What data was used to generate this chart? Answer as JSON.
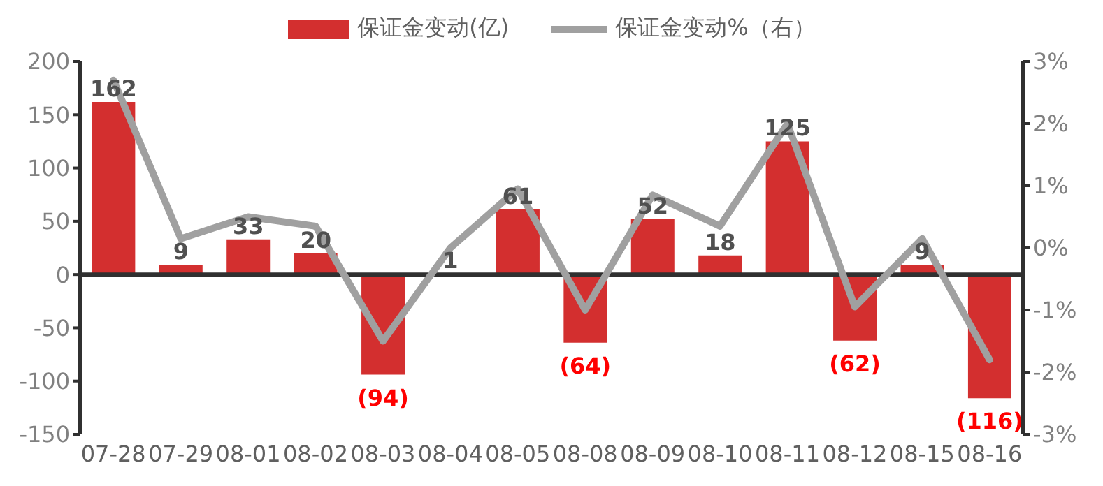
{
  "chart_data": {
    "type": "bar",
    "categories": [
      "07-28",
      "07-29",
      "08-01",
      "08-02",
      "08-03",
      "08-04",
      "08-05",
      "08-08",
      "08-09",
      "08-10",
      "08-11",
      "08-12",
      "08-15",
      "08-16"
    ],
    "series": [
      {
        "name": "保证金变动(亿)",
        "color": "#d32f2f",
        "values": [
          162,
          9,
          33,
          20,
          -94,
          1,
          61,
          -64,
          52,
          18,
          125,
          -62,
          9,
          -116
        ],
        "value_labels": [
          "162",
          "9",
          "33",
          "20",
          "(94)",
          "1",
          "61",
          "(64)",
          "52",
          "18",
          "125",
          "(62)",
          "9",
          "(116)"
        ]
      },
      {
        "name": "保证金变动%（右）",
        "type": "line",
        "axis": "y2",
        "color": "#a0a0a0",
        "values": [
          2.7,
          0.15,
          0.5,
          0.35,
          -1.5,
          0.0,
          0.95,
          -1.0,
          0.85,
          0.35,
          2.0,
          -0.95,
          0.15,
          -1.8
        ]
      }
    ],
    "ylim": [
      -150,
      200
    ],
    "yticks": [
      -150,
      -100,
      -50,
      0,
      50,
      100,
      150,
      200
    ],
    "y2lim": [
      -3,
      3
    ],
    "y2ticks": [
      {
        "value": -3,
        "label": "-3%"
      },
      {
        "value": -2,
        "label": "-2%"
      },
      {
        "value": -1,
        "label": "-1%"
      },
      {
        "value": 0,
        "label": "0%"
      },
      {
        "value": 1,
        "label": "1%"
      },
      {
        "value": 2,
        "label": "2%"
      },
      {
        "value": 3,
        "label": "3%"
      }
    ],
    "legend": "top",
    "marker": "none",
    "line_style": "solid"
  }
}
